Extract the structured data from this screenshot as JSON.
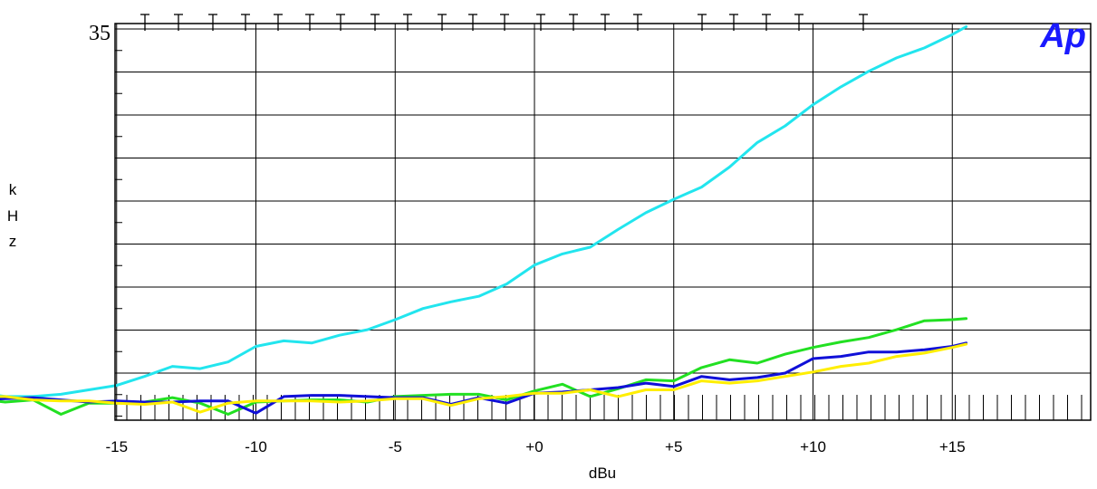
{
  "chart_data": {
    "type": "line",
    "title": "",
    "xlabel": "dBu",
    "ylabel_letters": [
      "k",
      "H",
      "z"
    ],
    "xlim": [
      -20,
      15.5
    ],
    "ylim": [
      0,
      35
    ],
    "y_max_label": "35",
    "x_ticks": [
      {
        "value": -15,
        "label": "-15"
      },
      {
        "value": -10,
        "label": "-10"
      },
      {
        "value": -5,
        "label": "-5"
      },
      {
        "value": 0,
        "label": "+0"
      },
      {
        "value": 5,
        "label": "+5"
      },
      {
        "value": 10,
        "label": "+10"
      },
      {
        "value": 15,
        "label": "+15"
      }
    ],
    "grid": true,
    "logo_text": "Ap",
    "colors": {
      "cyan": "#22e5ee",
      "green": "#22e022",
      "blue": "#1010d8",
      "yellow": "#ffee00"
    },
    "x": [
      -20,
      -19,
      -18,
      -17,
      -16,
      -15,
      -14,
      -13,
      -12,
      -11,
      -10,
      -9,
      -8,
      -7,
      -6,
      -5,
      -4,
      -3,
      -2,
      -1,
      0,
      1,
      2,
      3,
      4,
      5,
      6,
      7,
      8,
      9,
      10,
      11,
      12,
      13,
      14,
      15,
      15.5
    ],
    "series": [
      {
        "color": "cyan",
        "values": [
          2.2,
          1.8,
          1.8,
          2.0,
          2.4,
          2.8,
          3.6,
          4.5,
          4.3,
          4.9,
          6.3,
          6.8,
          6.6,
          7.3,
          7.8,
          8.7,
          9.7,
          10.3,
          10.8,
          11.9,
          13.6,
          14.6,
          15.2,
          16.8,
          18.3,
          19.5,
          20.6,
          22.4,
          24.6,
          26.1,
          28.0,
          29.6,
          31.0,
          32.2,
          33.1,
          34.3,
          35.0
        ]
      },
      {
        "color": "green",
        "values": [
          1.6,
          1.3,
          1.5,
          0.2,
          1.2,
          1.2,
          1.3,
          1.7,
          1.2,
          0.2,
          1.3,
          1.4,
          1.5,
          1.5,
          1.3,
          1.8,
          1.9,
          2.0,
          2.0,
          1.5,
          2.3,
          2.9,
          1.8,
          2.5,
          3.3,
          3.2,
          4.4,
          5.1,
          4.8,
          5.6,
          6.2,
          6.7,
          7.1,
          7.8,
          8.6,
          8.7,
          8.8
        ]
      },
      {
        "color": "blue",
        "values": [
          1.5,
          1.6,
          1.7,
          1.5,
          1.3,
          1.4,
          1.3,
          1.3,
          1.4,
          1.4,
          0.3,
          1.8,
          1.9,
          1.9,
          1.8,
          1.7,
          1.7,
          1.1,
          1.7,
          1.2,
          2.1,
          2.2,
          2.4,
          2.6,
          3.0,
          2.7,
          3.6,
          3.3,
          3.5,
          3.9,
          5.2,
          5.4,
          5.8,
          5.8,
          6.0,
          6.3,
          6.6
        ]
      },
      {
        "color": "yellow",
        "values": [
          1.8,
          1.8,
          1.5,
          1.4,
          1.4,
          1.2,
          1.1,
          1.3,
          0.4,
          1.2,
          1.4,
          1.4,
          1.4,
          1.3,
          1.4,
          1.6,
          1.6,
          1.0,
          1.6,
          1.8,
          2.1,
          2.1,
          2.4,
          1.8,
          2.4,
          2.4,
          3.2,
          3.0,
          3.2,
          3.6,
          4.0,
          4.5,
          4.8,
          5.4,
          5.7,
          6.2,
          6.5
        ]
      }
    ]
  }
}
